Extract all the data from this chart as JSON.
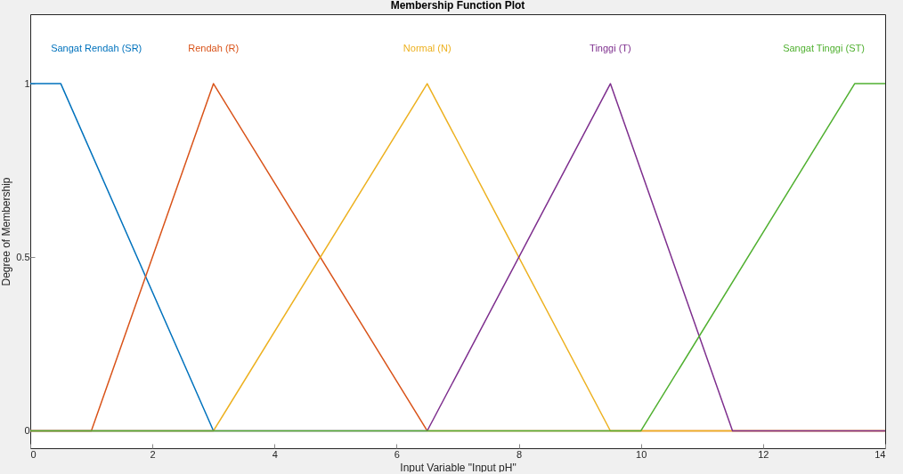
{
  "chart_data": {
    "type": "line",
    "title": "Membership Function Plot",
    "xlabel": "Input Variable \"Input pH\"",
    "ylabel": "Degree of Membership",
    "xlim": [
      0,
      14
    ],
    "ylim": [
      -0.05,
      1.2
    ],
    "xticks": [
      0,
      2,
      4,
      6,
      8,
      10,
      12,
      14
    ],
    "yticks": [
      0,
      0.5,
      1
    ],
    "grid": false,
    "legend": false,
    "marker": "none",
    "line_style": "solid",
    "series": [
      {
        "name": "Sangat Rendah (SR)",
        "color": "#0072bd",
        "x": [
          0,
          0.5,
          3
        ],
        "values": [
          1,
          1,
          0
        ]
      },
      {
        "name": "Rendah (R)",
        "color": "#d95319",
        "x": [
          0,
          1,
          3,
          6.5,
          14
        ],
        "values": [
          0,
          0,
          1,
          0,
          0
        ]
      },
      {
        "name": "Normal (N)",
        "color": "#edb120",
        "x": [
          0,
          3,
          6.5,
          9.5,
          14
        ],
        "values": [
          0,
          0,
          1,
          0,
          0
        ]
      },
      {
        "name": "Tinggi (T)",
        "color": "#7e2f8e",
        "x": [
          0,
          6.5,
          9.5,
          11.5,
          14
        ],
        "values": [
          0,
          0,
          1,
          0,
          0
        ]
      },
      {
        "name": "Sangat Tinggi (ST)",
        "color": "#50b030",
        "x": [
          0,
          10,
          13.5,
          14
        ],
        "values": [
          0,
          0,
          1,
          1
        ]
      }
    ]
  }
}
